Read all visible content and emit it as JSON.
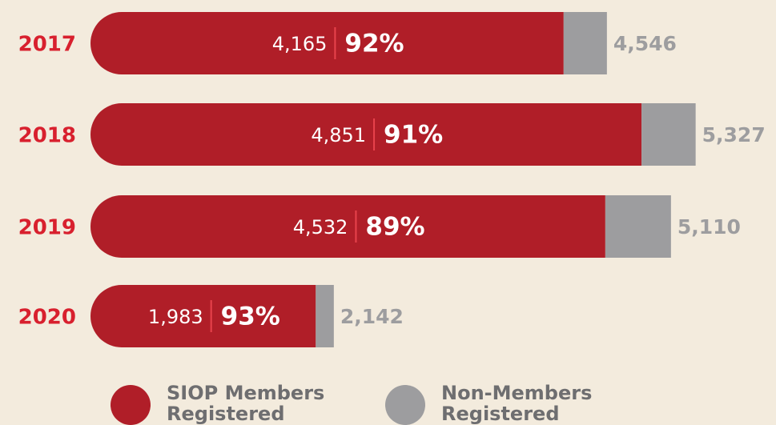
{
  "chart_data": {
    "type": "stacked-bar-horizontal",
    "categories": [
      "2017",
      "2018",
      "2019",
      "2020"
    ],
    "series": [
      {
        "name": "SIOP Members Registered",
        "color": "#b01e28",
        "values": [
          4165,
          4851,
          4532,
          1983
        ],
        "value_labels": [
          "4,165",
          "4,851",
          "4,532",
          "1,983"
        ]
      },
      {
        "name": "Non-Members Registered",
        "color": "#9d9d9f",
        "values": [
          381,
          476,
          578,
          159
        ]
      }
    ],
    "percent_labels": [
      "92%",
      "91%",
      "89%",
      "93%"
    ],
    "totals": [
      4546,
      5327,
      5110,
      2142
    ],
    "total_labels": [
      "4,546",
      "5,327",
      "5,110",
      "2,142"
    ],
    "xlim": [
      0,
      5400
    ]
  }
}
